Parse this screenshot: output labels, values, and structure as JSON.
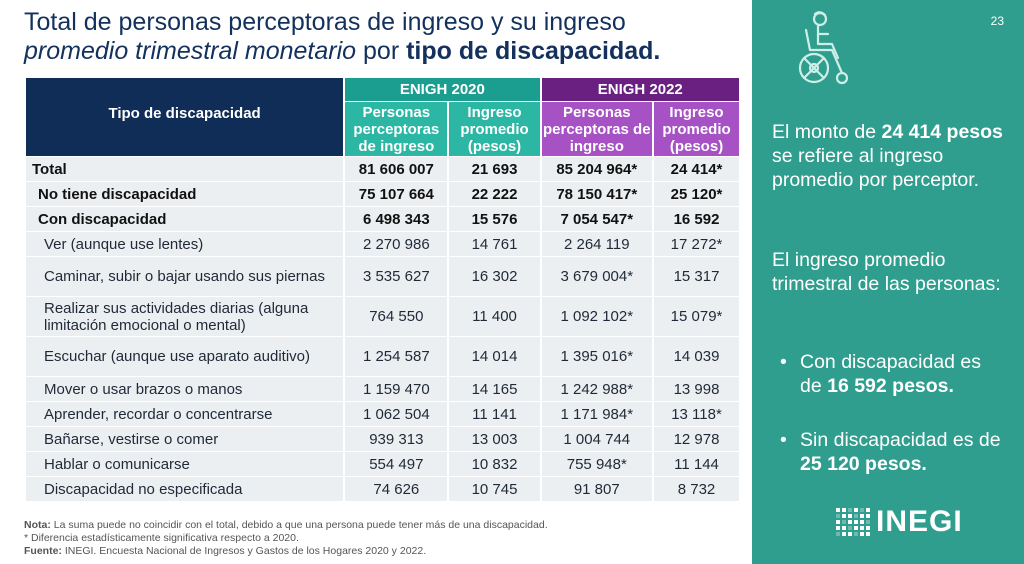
{
  "title": {
    "line1": "Total de personas perceptoras de ingreso y su ingreso",
    "line2_italic": "promedio trimestral monetario",
    "line2_mid": " por ",
    "line2_bold": "tipo de discapacidad."
  },
  "table": {
    "type_header": "Tipo de discapacidad",
    "group_2020": "ENIGH 2020",
    "group_2022": "ENIGH 2022",
    "sub_personas": "Personas perceptoras de ingreso",
    "sub_ingreso": "Ingreso promedio (pesos)",
    "rows": [
      {
        "label": "Total",
        "p2020": "81 606 007",
        "i2020": "21 693",
        "p2022": "85 204 964*",
        "i2022": "24 414*"
      },
      {
        "label": "No tiene discapacidad",
        "p2020": "75 107 664",
        "i2020": "22 222",
        "p2022": "78 150 417*",
        "i2022": "25 120*"
      },
      {
        "label": "Con discapacidad",
        "p2020": "6 498 343",
        "i2020": "15 576",
        "p2022": "7 054 547*",
        "i2022": "16 592"
      },
      {
        "label": "Ver (aunque use lentes)",
        "p2020": "2 270 986",
        "i2020": "14 761",
        "p2022": "2 264 119",
        "i2022": "17 272*"
      },
      {
        "label": "Caminar, subir o bajar usando sus piernas",
        "p2020": "3 535 627",
        "i2020": "16 302",
        "p2022": "3 679 004*",
        "i2022": "15 317"
      },
      {
        "label": "Realizar sus actividades diarias (alguna limitación emocional o mental)",
        "p2020": "764 550",
        "i2020": "11 400",
        "p2022": "1 092 102*",
        "i2022": "15 079*"
      },
      {
        "label": "Escuchar (aunque use aparato auditivo)",
        "p2020": "1 254 587",
        "i2020": "14 014",
        "p2022": "1 395 016*",
        "i2022": "14 039"
      },
      {
        "label": "Mover o usar brazos o manos",
        "p2020": "1 159 470",
        "i2020": "14 165",
        "p2022": "1 242 988*",
        "i2022": "13 998"
      },
      {
        "label": "Aprender, recordar o concentrarse",
        "p2020": "1 062 504",
        "i2020": "11 141",
        "p2022": "1 171 984*",
        "i2022": "13 118*"
      },
      {
        "label": "Bañarse, vestirse o comer",
        "p2020": "939 313",
        "i2020": "13 003",
        "p2022": "1 004 744",
        "i2022": "12 978"
      },
      {
        "label": "Hablar o comunicarse",
        "p2020": "554 497",
        "i2020": "10 832",
        "p2022": "755 948*",
        "i2022": "11 144"
      },
      {
        "label": "Discapacidad no especificada",
        "p2020": "74 626",
        "i2020": "10 745",
        "p2022": "91 807",
        "i2022": "8 732"
      }
    ]
  },
  "notes": {
    "nota_label": "Nota:",
    "nota_text": " La suma puede no coincidir con el total, debido a que una persona puede tener más de una discapacidad.",
    "asterisk": "* Diferencia estadísticamente significativa respecto a 2020.",
    "fuente_label": "Fuente:",
    "fuente_text": " INEGI. Encuesta Nacional de Ingresos y Gastos de los Hogares 2020 y 2022."
  },
  "panel": {
    "slide_number": "23",
    "p1_a": "El monto de ",
    "p1_b": "24 414 pesos",
    "p1_c": " se refiere al ingreso promedio por perceptor.",
    "p2": "El ingreso promedio trimestral de las personas:",
    "b1_a": "Con discapacidad es de ",
    "b1_b": "16 592 pesos.",
    "b2_a": "Sin discapacidad es de ",
    "b2_b": "25 120 pesos.",
    "logo_text": "INEGI",
    "icon": "wheelchair-icon",
    "colors": {
      "panel": "#2f9e8e",
      "navy": "#0f2d57",
      "teal": "#1b9e8f",
      "purple": "#6a2080"
    }
  }
}
